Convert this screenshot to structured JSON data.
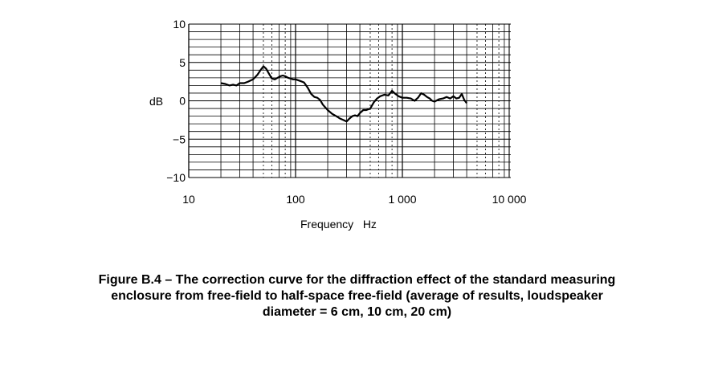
{
  "chart_data": {
    "type": "line",
    "xscale": "log",
    "xlim": [
      20,
      5000
    ],
    "ylim": [
      -10,
      10
    ],
    "xticks": [
      10,
      100,
      1000,
      10000
    ],
    "xtick_labels": [
      "10",
      "100",
      "1 000",
      "10 000"
    ],
    "yticks": [
      10,
      5,
      0,
      -5,
      -10
    ],
    "ytick_labels": [
      "10",
      "5",
      "0",
      "−5",
      "−10"
    ],
    "xlabel": "Frequency   Hz",
    "ylabel": "dB",
    "grid": true,
    "dashed_gridlines_x": [
      50,
      60,
      80,
      500,
      600,
      800,
      5000,
      6000,
      8000
    ],
    "series": [
      {
        "x": [
          20,
          22,
          24,
          26,
          28,
          30,
          33,
          36,
          40,
          44,
          47,
          50,
          53,
          56,
          60,
          64,
          68,
          72,
          76,
          80,
          85,
          90,
          95,
          100,
          110,
          120,
          130,
          140,
          150,
          160,
          170,
          180,
          200,
          220,
          240,
          260,
          280,
          300,
          320,
          340,
          360,
          380,
          400,
          430,
          460,
          500,
          540,
          580,
          620,
          680,
          740,
          800,
          860,
          920,
          1000,
          1100,
          1200,
          1300,
          1400,
          1500,
          1600,
          1700,
          1800,
          1900,
          2000,
          2200,
          2400,
          2600,
          2800,
          3000,
          3200,
          3400,
          3600,
          3800,
          4000
        ],
        "y": [
          2.3,
          2.2,
          2.0,
          2.1,
          2.0,
          2.3,
          2.3,
          2.5,
          2.8,
          3.4,
          4.0,
          4.5,
          4.2,
          3.6,
          2.9,
          2.8,
          3.0,
          3.2,
          3.3,
          3.2,
          3.0,
          2.9,
          2.8,
          2.8,
          2.6,
          2.4,
          1.7,
          0.9,
          0.5,
          0.4,
          0.1,
          -0.5,
          -1.2,
          -1.7,
          -2.0,
          -2.3,
          -2.5,
          -2.7,
          -2.3,
          -2.0,
          -1.9,
          -2.0,
          -1.6,
          -1.2,
          -1.2,
          -1.0,
          -0.2,
          0.3,
          0.6,
          0.8,
          0.7,
          1.3,
          0.9,
          0.6,
          0.4,
          0.4,
          0.3,
          0.0,
          0.4,
          1.0,
          0.8,
          0.5,
          0.3,
          0.0,
          -0.1,
          0.2,
          0.3,
          0.5,
          0.3,
          0.6,
          0.3,
          0.4,
          0.9,
          0.1,
          -0.3
        ]
      }
    ]
  },
  "caption": {
    "line1": "Figure B.4 – The correction curve for the diffraction effect of the standard measuring",
    "line2": "enclosure from free-field to half-space free-field (average of results, loudspeaker",
    "line3": "diameter = 6 cm, 10 cm, 20 cm)"
  }
}
